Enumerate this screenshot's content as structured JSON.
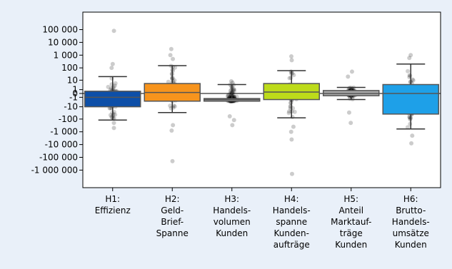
{
  "chart_data": {
    "type": "box",
    "yscale": "symlog",
    "grid": false,
    "legend": "none",
    "title": "",
    "xlabel": "",
    "ylabel": "",
    "y_ticks": [
      {
        "value": 100000,
        "label": "100 000"
      },
      {
        "value": 10000,
        "label": "10 000"
      },
      {
        "value": 1000,
        "label": "1 000"
      },
      {
        "value": 100,
        "label": "100"
      },
      {
        "value": 10,
        "label": "10"
      },
      {
        "value": 1,
        "label": "1"
      },
      {
        "value": 0,
        "label": "0"
      },
      {
        "value": -1,
        "label": "-1"
      },
      {
        "value": -10,
        "label": "-10"
      },
      {
        "value": -100,
        "label": "-100"
      },
      {
        "value": -1000,
        "label": "-1 000"
      },
      {
        "value": -10000,
        "label": "-10 000"
      },
      {
        "value": -100000,
        "label": "-100 000"
      },
      {
        "value": -1000000,
        "label": "-1 000 000"
      }
    ],
    "ylim": [
      -3000000,
      300000
    ],
    "categories": [
      {
        "lines": [
          "H1:",
          "Effizienz"
        ],
        "color": "#0d4fa8",
        "whisker_low": -120,
        "q1": -10,
        "median": -1,
        "q3": 0.5,
        "whisker_high": 20,
        "outliers": [
          80000,
          200,
          100,
          -200,
          -500
        ]
      },
      {
        "lines": [
          "H2:",
          "Geld-",
          "Brief-",
          "Spanne"
        ],
        "color": "#f7941d",
        "whisker_low": -30,
        "q1": -3,
        "median": 0.2,
        "q3": 5,
        "whisker_high": 150,
        "outliers": [
          3000,
          500,
          1000,
          -300,
          -800,
          -200000
        ]
      },
      {
        "lines": [
          "H3:",
          "Handels-",
          "volumen",
          "Kunden"
        ],
        "color": "#8f8f8f",
        "whisker_low": -3,
        "q1": -3,
        "median": -2,
        "q3": -1.5,
        "whisker_high": 4,
        "outliers": [
          8,
          6,
          -60,
          -120,
          -300
        ]
      },
      {
        "lines": [
          "H4:",
          "Handels-",
          "spanne",
          "Kunden-",
          "aufträge"
        ],
        "color": "#bddb1a",
        "whisker_low": -80,
        "q1": -2,
        "median": 0.3,
        "q3": 5,
        "whisker_high": 60,
        "outliers": [
          800,
          400,
          -400,
          -1000,
          -4000,
          -2000000
        ]
      },
      {
        "lines": [
          "H5:",
          "Anteil",
          "Marktauf-",
          "träge",
          "Kunden"
        ],
        "color": "#a8a8a8",
        "whisker_low": -2,
        "q1": -0.5,
        "median": 0,
        "q3": 0.7,
        "whisker_high": 2,
        "outliers": [
          50,
          20,
          -30,
          -200
        ]
      },
      {
        "lines": [
          "H6:",
          "Brutto-",
          "Handels-",
          "umsätze",
          "Kunden"
        ],
        "color": "#1ea0e8",
        "whisker_low": -600,
        "q1": -40,
        "median": 0,
        "q3": 4,
        "whisker_high": 200,
        "outliers": [
          1000,
          600,
          -2000,
          -8000
        ]
      }
    ]
  }
}
